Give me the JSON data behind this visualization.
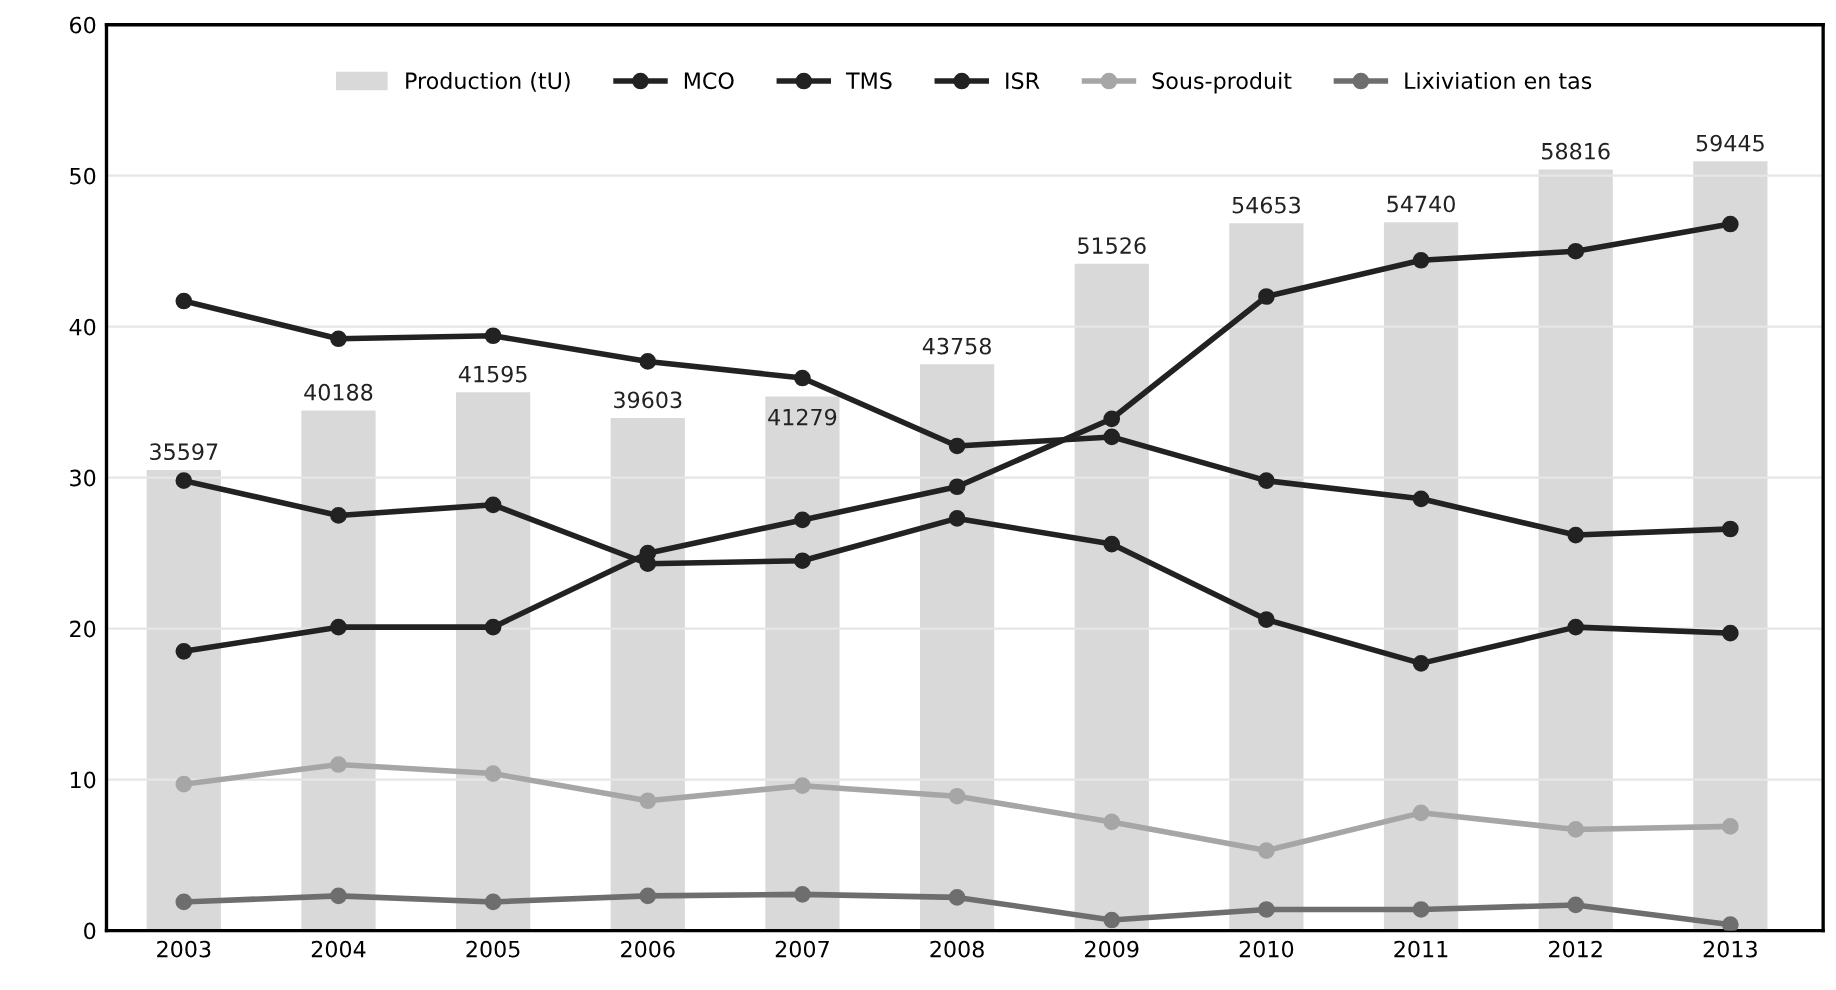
{
  "chart_data": {
    "type": "line",
    "categories": [
      "2003",
      "2004",
      "2005",
      "2006",
      "2007",
      "2008",
      "2009",
      "2010",
      "2011",
      "2012",
      "2013"
    ],
    "series": [
      {
        "name": "Production (tU)",
        "type": "bar",
        "axis": "y2",
        "color": "#d9d9d9",
        "values": [
          35597,
          40188,
          41595,
          39603,
          41279,
          43758,
          51526,
          54653,
          54740,
          58816,
          59445
        ],
        "value_labels": [
          "35597",
          "40188",
          "41595",
          "39603",
          "41279",
          "43758",
          "51526",
          "54653",
          "54740",
          "58816",
          "59445"
        ]
      },
      {
        "name": "MCO",
        "color": "#222222",
        "values": [
          29.8,
          27.5,
          28.2,
          24.3,
          24.5,
          27.3,
          25.6,
          20.6,
          17.7,
          20.1,
          19.7
        ]
      },
      {
        "name": "TMS",
        "color": "#222222",
        "values": [
          41.7,
          39.2,
          39.4,
          37.7,
          36.6,
          32.1,
          32.7,
          29.8,
          28.6,
          26.2,
          26.6
        ]
      },
      {
        "name": "ISR",
        "color": "#222222",
        "values": [
          18.5,
          20.1,
          20.1,
          25.0,
          27.2,
          29.4,
          33.9,
          42.0,
          44.4,
          45.0,
          46.8
        ]
      },
      {
        "name": "Sous-produit",
        "color": "#a6a6a6",
        "values": [
          9.7,
          11.0,
          10.4,
          8.6,
          9.6,
          8.9,
          7.2,
          5.3,
          7.8,
          6.7,
          6.9
        ]
      },
      {
        "name": "Lixiviation en tas",
        "color": "#6e6e6e",
        "values": [
          1.9,
          2.3,
          1.9,
          2.3,
          2.4,
          2.2,
          0.7,
          1.4,
          1.4,
          1.7,
          0.4
        ]
      }
    ],
    "ylim": [
      0,
      60
    ],
    "yticks": [
      0,
      10,
      20,
      30,
      40,
      50,
      60
    ],
    "y2lim": [
      0,
      70000
    ],
    "grid": "y",
    "legend": "top",
    "marker": "circle",
    "line_style": "solid"
  }
}
